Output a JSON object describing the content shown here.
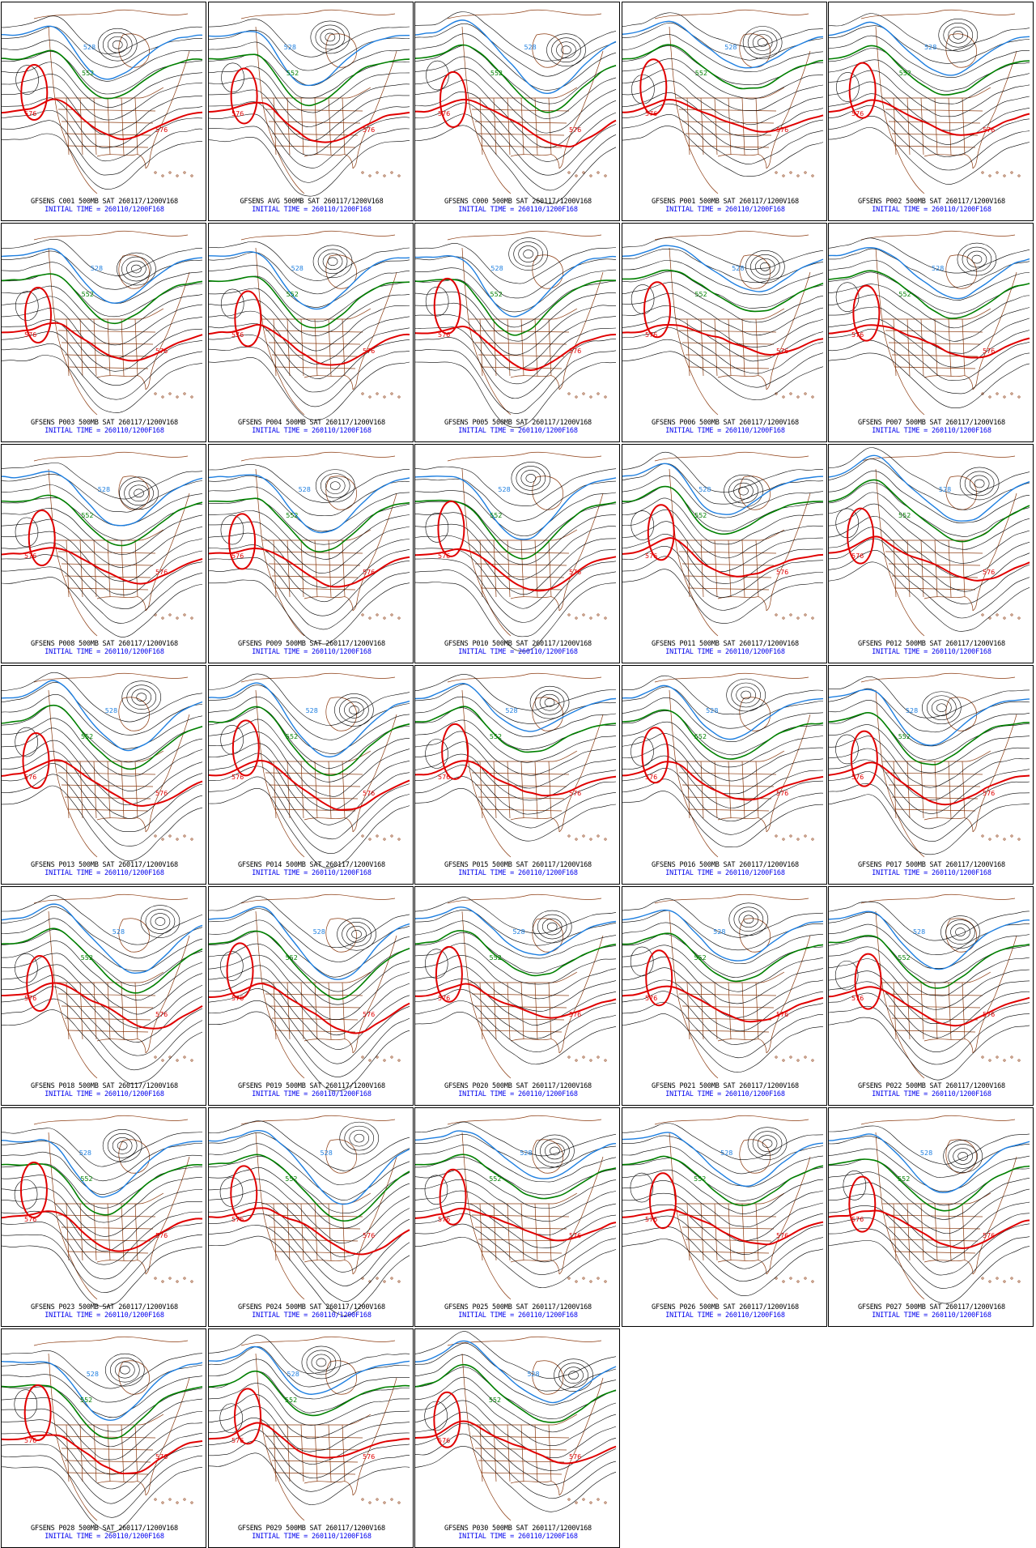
{
  "colors": {
    "contour": "#000000",
    "contour_576": "#e00000",
    "contour_552": "#008000",
    "contour_528": "#1e7fe0",
    "geography": "#8b3a0f",
    "caption_line1": "#000000",
    "caption_line2": "#0000ee"
  },
  "contour_labels": {
    "red": "576",
    "green": "552",
    "blue": "528"
  },
  "panels": [
    {
      "caption": "GFSENS C001 500MB SAT 260117/1200V168",
      "initial": "INITIAL TIME = 260110/1200F168"
    },
    {
      "caption": "GFSENS AVG 500MB SAT 260117/1200V168",
      "initial": "INITIAL TIME = 260110/1200F168"
    },
    {
      "caption": "GFSENS C000 500MB SAT 260117/1200V168",
      "initial": "INITIAL TIME = 260110/1200F168"
    },
    {
      "caption": "GFSENS P001 500MB SAT 260117/1200V168",
      "initial": "INITIAL TIME = 260110/1200F168"
    },
    {
      "caption": "GFSENS P002 500MB SAT 260117/1200V168",
      "initial": "INITIAL TIME = 260110/1200F168"
    },
    {
      "caption": "GFSENS P003 500MB SAT 260117/1200V168",
      "initial": "INITIAL TIME = 260110/1200F168"
    },
    {
      "caption": "GFSENS P004 500MB SAT 260117/1200V168",
      "initial": "INITIAL TIME = 260110/1200F168"
    },
    {
      "caption": "GFSENS P005 500MB SAT 260117/1200V168",
      "initial": "INITIAL TIME = 260110/1200F168"
    },
    {
      "caption": "GFSENS P006 500MB SAT 260117/1200V168",
      "initial": "INITIAL TIME = 260110/1200F168"
    },
    {
      "caption": "GFSENS P007 500MB SAT 260117/1200V168",
      "initial": "INITIAL TIME = 260110/1200F168"
    },
    {
      "caption": "GFSENS P008 500MB SAT 260117/1200V168",
      "initial": "INITIAL TIME = 260110/1200F168"
    },
    {
      "caption": "GFSENS P009 500MB SAT 260117/1200V168",
      "initial": "INITIAL TIME = 260110/1200F168"
    },
    {
      "caption": "GFSENS P010 500MB SAT 260117/1200V168",
      "initial": "INITIAL TIME = 260110/1200F168"
    },
    {
      "caption": "GFSENS P011 500MB SAT 260117/1200V168",
      "initial": "INITIAL TIME = 260110/1200F168"
    },
    {
      "caption": "GFSENS P012 500MB SAT 260117/1200V168",
      "initial": "INITIAL TIME = 260110/1200F168"
    },
    {
      "caption": "GFSENS P013 500MB SAT 260117/1200V168",
      "initial": "INITIAL TIME = 260110/1200F168"
    },
    {
      "caption": "GFSENS P014 500MB SAT 260117/1200V168",
      "initial": "INITIAL TIME = 260110/1200F168"
    },
    {
      "caption": "GFSENS P015 500MB SAT 260117/1200V168",
      "initial": "INITIAL TIME = 260110/1200F168"
    },
    {
      "caption": "GFSENS P016 500MB SAT 260117/1200V168",
      "initial": "INITIAL TIME = 260110/1200F168"
    },
    {
      "caption": "GFSENS P017 500MB SAT 260117/1200V168",
      "initial": "INITIAL TIME = 260110/1200F168"
    },
    {
      "caption": "GFSENS P018 500MB SAT 260117/1200V168",
      "initial": "INITIAL TIME = 260110/1200F168"
    },
    {
      "caption": "GFSENS P019 500MB SAT 260117/1200V168",
      "initial": "INITIAL TIME = 260110/1200F168"
    },
    {
      "caption": "GFSENS P020 500MB SAT 260117/1200V168",
      "initial": "INITIAL TIME = 260110/1200F168"
    },
    {
      "caption": "GFSENS P021 500MB SAT 260117/1200V168",
      "initial": "INITIAL TIME = 260110/1200F168"
    },
    {
      "caption": "GFSENS P022 500MB SAT 260117/1200V168",
      "initial": "INITIAL TIME = 260110/1200F168"
    },
    {
      "caption": "GFSENS P023 500MB SAT 260117/1200V168",
      "initial": "INITIAL TIME = 260110/1200F168"
    },
    {
      "caption": "GFSENS P024 500MB SAT 260117/1200V168",
      "initial": "INITIAL TIME = 260110/1200F168"
    },
    {
      "caption": "GFSENS P025 500MB SAT 260117/1200V168",
      "initial": "INITIAL TIME = 260110/1200F168"
    },
    {
      "caption": "GFSENS P026 500MB SAT 260117/1200V168",
      "initial": "INITIAL TIME = 260110/1200F168"
    },
    {
      "caption": "GFSENS P027 500MB SAT 260117/1200V168",
      "initial": "INITIAL TIME = 260110/1200F168"
    },
    {
      "caption": "GFSENS P028 500MB SAT 260117/1200V168",
      "initial": "INITIAL TIME = 260110/1200F168"
    },
    {
      "caption": "GFSENS P029 500MB SAT 260117/1200V168",
      "initial": "INITIAL TIME = 260110/1200F168"
    },
    {
      "caption": "GFSENS P030 500MB SAT 260117/1200V168",
      "initial": "INITIAL TIME = 260110/1200F168"
    }
  ]
}
